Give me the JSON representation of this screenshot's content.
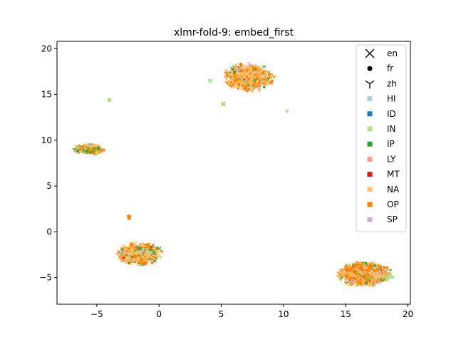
{
  "chart_data": {
    "type": "scatter",
    "title": "xlmr-fold-9: embed_first",
    "xlabel": "",
    "ylabel": "",
    "xlim": [
      -8.2,
      20.2
    ],
    "ylim": [
      -7.9,
      20.8
    ],
    "xticks": [
      -5,
      0,
      5,
      10,
      15,
      20
    ],
    "yticks": [
      -5,
      0,
      5,
      10,
      15,
      20
    ],
    "xtick_labels": [
      "−5",
      "0",
      "5",
      "10",
      "15",
      "20"
    ],
    "ytick_labels": [
      "−5",
      "0",
      "5",
      "10",
      "15",
      "20"
    ],
    "grid": false,
    "legend_position": "top-right",
    "marker_legend": [
      {
        "label": "en",
        "marker": "x"
      },
      {
        "label": "fr",
        "marker": "o"
      },
      {
        "label": "zh",
        "marker": "tri_down"
      }
    ],
    "class_legend": [
      {
        "label": "HI",
        "color": "#a6cee3"
      },
      {
        "label": "ID",
        "color": "#1f78b4"
      },
      {
        "label": "IN",
        "color": "#b2df8a"
      },
      {
        "label": "IP",
        "color": "#33a02c"
      },
      {
        "label": "LY",
        "color": "#fb9a99"
      },
      {
        "label": "MT",
        "color": "#e31a1c"
      },
      {
        "label": "NA",
        "color": "#fdbf6f"
      },
      {
        "label": "OP",
        "color": "#ff7f00"
      },
      {
        "label": "SP",
        "color": "#cab2d6"
      }
    ],
    "clusters": [
      {
        "center": [
          7.2,
          16.9
        ],
        "spread": [
          1.9,
          1.4
        ],
        "n": 650,
        "mix": {
          "NA": 0.45,
          "OP": 0.38,
          "IP": 0.1,
          "IN": 0.04,
          "MT": 0.01,
          "SP": 0.02
        }
      },
      {
        "center": [
          -5.6,
          9.0
        ],
        "spread": [
          1.2,
          0.5
        ],
        "n": 260,
        "mix": {
          "NA": 0.45,
          "OP": 0.28,
          "IP": 0.22,
          "IN": 0.05
        }
      },
      {
        "center": [
          -1.6,
          -2.4
        ],
        "spread": [
          1.7,
          1.1
        ],
        "n": 520,
        "mix": {
          "NA": 0.48,
          "OP": 0.28,
          "IP": 0.14,
          "SP": 0.06,
          "IN": 0.03,
          "MT": 0.01
        }
      },
      {
        "center": [
          16.5,
          -4.6
        ],
        "spread": [
          2.0,
          1.2
        ],
        "n": 820,
        "mix": {
          "OP": 0.46,
          "NA": 0.38,
          "IP": 0.07,
          "SP": 0.05,
          "IN": 0.04
        }
      },
      {
        "center": [
          -4.0,
          14.4
        ],
        "spread": [
          0.1,
          0.1
        ],
        "n": 6,
        "mix": {
          "IN": 1.0
        }
      },
      {
        "center": [
          4.1,
          16.5
        ],
        "spread": [
          0.12,
          0.06
        ],
        "n": 6,
        "mix": {
          "IN": 1.0
        }
      },
      {
        "center": [
          10.3,
          13.2
        ],
        "spread": [
          0.08,
          0.06
        ],
        "n": 4,
        "mix": {
          "IN": 0.6,
          "IP": 0.4
        }
      },
      {
        "center": [
          5.1,
          14.0
        ],
        "spread": [
          0.1,
          0.1
        ],
        "n": 4,
        "mix": {
          "IN": 0.6,
          "OP": 0.4
        }
      },
      {
        "center": [
          -2.4,
          1.6
        ],
        "spread": [
          0.1,
          0.15
        ],
        "n": 8,
        "mix": {
          "OP": 0.6,
          "NA": 0.4
        }
      },
      {
        "center": [
          18.5,
          -4.9
        ],
        "spread": [
          0.3,
          0.2
        ],
        "n": 15,
        "mix": {
          "IN": 1.0
        }
      }
    ]
  }
}
